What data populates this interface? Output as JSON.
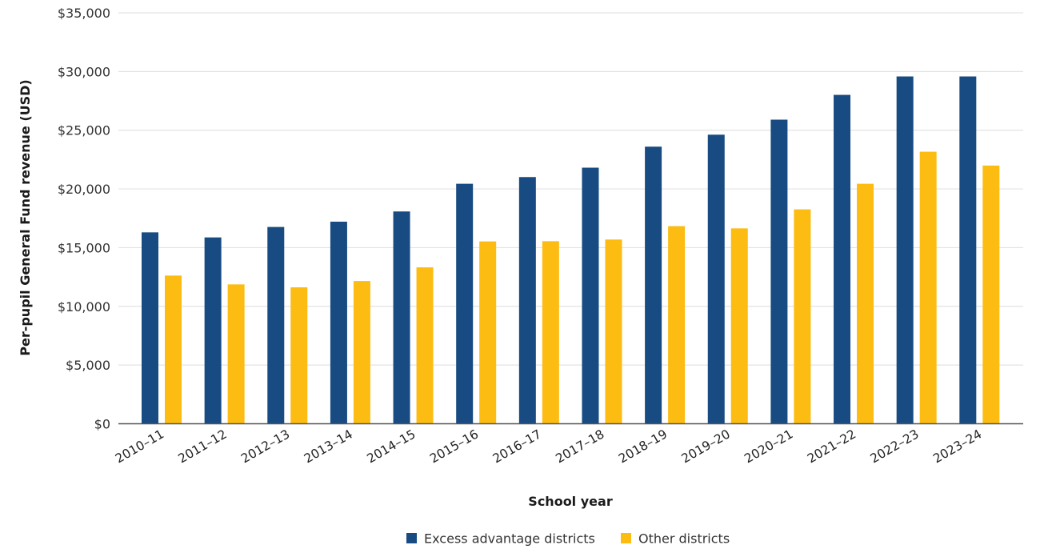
{
  "chart_data": {
    "type": "bar",
    "title": "",
    "xlabel": "School year",
    "ylabel": "Per-pupil General Fund revenue (USD)",
    "ylim": [
      0,
      35000
    ],
    "y_ticks": [
      0,
      5000,
      10000,
      15000,
      20000,
      25000,
      30000,
      35000
    ],
    "y_tick_labels": [
      "$0",
      "$5,000",
      "$10,000",
      "$15,000",
      "$20,000",
      "$25,000",
      "$30,000",
      "$35,000"
    ],
    "grid": true,
    "legend_position": "bottom",
    "categories": [
      "2010–11",
      "2011–12",
      "2012–13",
      "2013–14",
      "2014–15",
      "2015–16",
      "2016–17",
      "2017–18",
      "2018–19",
      "2019–20",
      "2020–21",
      "2021–22",
      "2022–23",
      "2023–24"
    ],
    "series": [
      {
        "name": "Excess advantage districts",
        "color": "#174B82",
        "values": [
          16300,
          15870,
          16760,
          17210,
          18080,
          20440,
          21010,
          21810,
          23600,
          24620,
          25900,
          28010,
          29580,
          29580
        ]
      },
      {
        "name": "Other districts",
        "color": "#FDBC12",
        "values": [
          12620,
          11870,
          11620,
          12160,
          13320,
          15530,
          15550,
          15690,
          16830,
          16640,
          18260,
          20440,
          23170,
          21990
        ]
      }
    ]
  }
}
